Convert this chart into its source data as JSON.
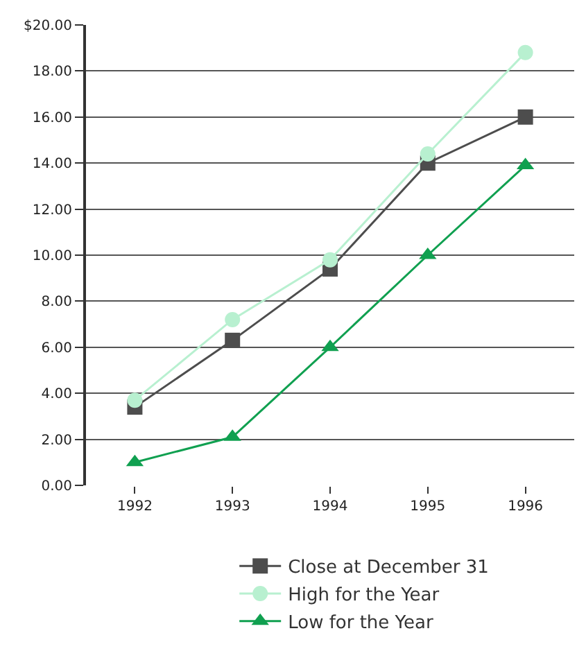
{
  "chart_data": {
    "type": "line",
    "categories": [
      "1992",
      "1993",
      "1994",
      "1995",
      "1996"
    ],
    "series": [
      {
        "name": "Close at December 31",
        "color": "#4d4d4d",
        "marker": "square",
        "values": [
          3.4,
          6.3,
          9.4,
          14.0,
          16.0
        ]
      },
      {
        "name": "High for the Year",
        "color": "#b8f0d0",
        "marker": "circle",
        "values": [
          3.7,
          7.2,
          9.8,
          14.4,
          18.8
        ]
      },
      {
        "name": "Low for the Year",
        "color": "#10a050",
        "marker": "triangle",
        "values": [
          1.0,
          2.1,
          6.0,
          10.0,
          13.9
        ]
      }
    ],
    "ylim": [
      0,
      20
    ],
    "yticks": [
      {
        "value": 0,
        "label": "0.00"
      },
      {
        "value": 2,
        "label": "2.00"
      },
      {
        "value": 4,
        "label": "4.00"
      },
      {
        "value": 6,
        "label": "6.00"
      },
      {
        "value": 8,
        "label": "8.00"
      },
      {
        "value": 10,
        "label": "10.00"
      },
      {
        "value": 12,
        "label": "12.00"
      },
      {
        "value": 14,
        "label": "14.00"
      },
      {
        "value": 16,
        "label": "16.00"
      },
      {
        "value": 18,
        "label": "18.00"
      },
      {
        "value": 20,
        "label": "$20.00"
      }
    ],
    "grid": "y",
    "legend": "bottom",
    "line_style": "solid"
  }
}
